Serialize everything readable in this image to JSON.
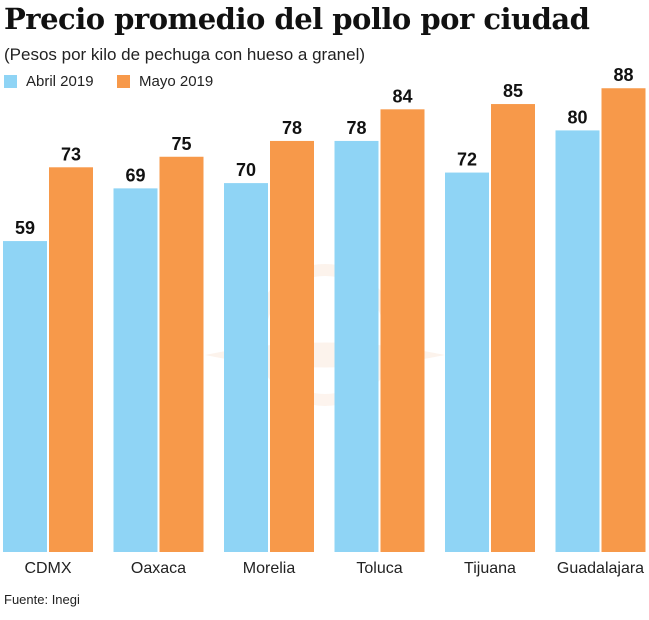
{
  "chart_data": {
    "type": "bar",
    "title": "Precio promedio del pollo por ciudad",
    "subtitle": "(Pesos por kilo de pechuga con hueso a granel)",
    "categories": [
      "CDMX",
      "Oaxaca",
      "Morelia",
      "Toluca",
      "Tijuana",
      "Guadalajara"
    ],
    "series": [
      {
        "name": "Abril 2019",
        "color": "#8fd4f5",
        "values": [
          59,
          69,
          70,
          78,
          72,
          80
        ]
      },
      {
        "name": "Mayo 2019",
        "color": "#f7994a",
        "values": [
          73,
          75,
          78,
          84,
          85,
          88
        ]
      }
    ],
    "ylim": [
      0,
      90
    ],
    "grid": false,
    "legend_position": "top-left",
    "source": "Fuente: Inegi"
  }
}
